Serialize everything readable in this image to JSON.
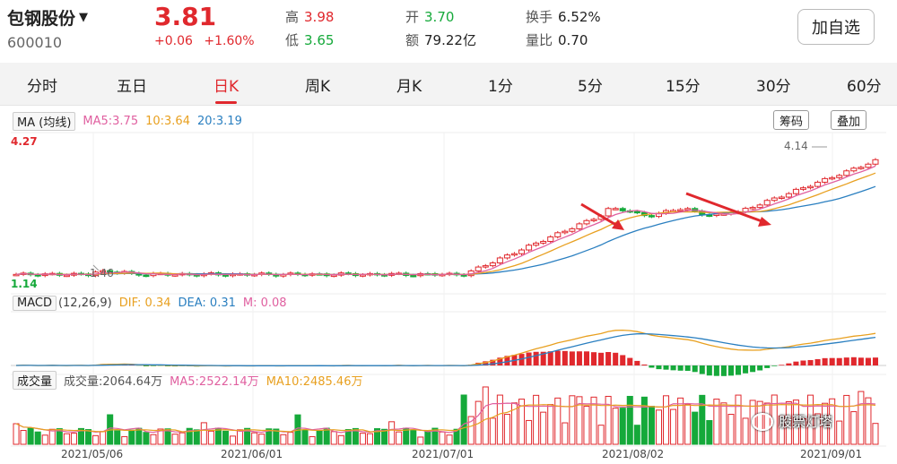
{
  "stock": {
    "name": "包钢股份",
    "code": "600010",
    "price": "3.81",
    "change": "+0.06",
    "change_pct": "+1.60%"
  },
  "stats": {
    "high_label": "高",
    "high": "3.98",
    "low_label": "低",
    "low": "3.65",
    "open_label": "开",
    "open": "3.70",
    "amount_label": "额",
    "amount": "79.22亿",
    "turnover_label": "换手",
    "turnover": "6.52%",
    "volratio_label": "量比",
    "volratio": "0.70"
  },
  "add_button": "加自选",
  "tabs": [
    "分时",
    "五日",
    "日K",
    "周K",
    "月K",
    "1分",
    "5分",
    "15分",
    "30分",
    "60分"
  ],
  "active_tab": 2,
  "ma_legend": {
    "label": "MA (均线)",
    "ma5": "MA5:3.75",
    "ma10": "10:3.64",
    "ma20": "20:3.19"
  },
  "buttons": {
    "chip": "筹码",
    "overlay": "叠加"
  },
  "price_axis": {
    "top": "4.27",
    "bottom": "1.14",
    "max_mark": "4.14",
    "min_mark": "1.46"
  },
  "macd_legend": {
    "label": "MACD",
    "params": "(12,26,9)",
    "dif": "DIF: 0.34",
    "dea": "DEA: 0.31",
    "m": "M: 0.08"
  },
  "vol_legend": {
    "label": "成交量",
    "vol": "成交量:2064.64万",
    "ma5": "MA5:2522.14万",
    "ma10": "MA10:2485.46万"
  },
  "dates": [
    "2021/05/06",
    "2021/06/01",
    "2021/07/01",
    "2021/08/02",
    "2021/09/01"
  ],
  "watermark": "股票灯塔",
  "colors": {
    "up": "#e0282d",
    "down": "#15a93a",
    "ma5": "#e060a0",
    "ma10": "#e8a020",
    "ma20": "#2a7fc0"
  }
}
